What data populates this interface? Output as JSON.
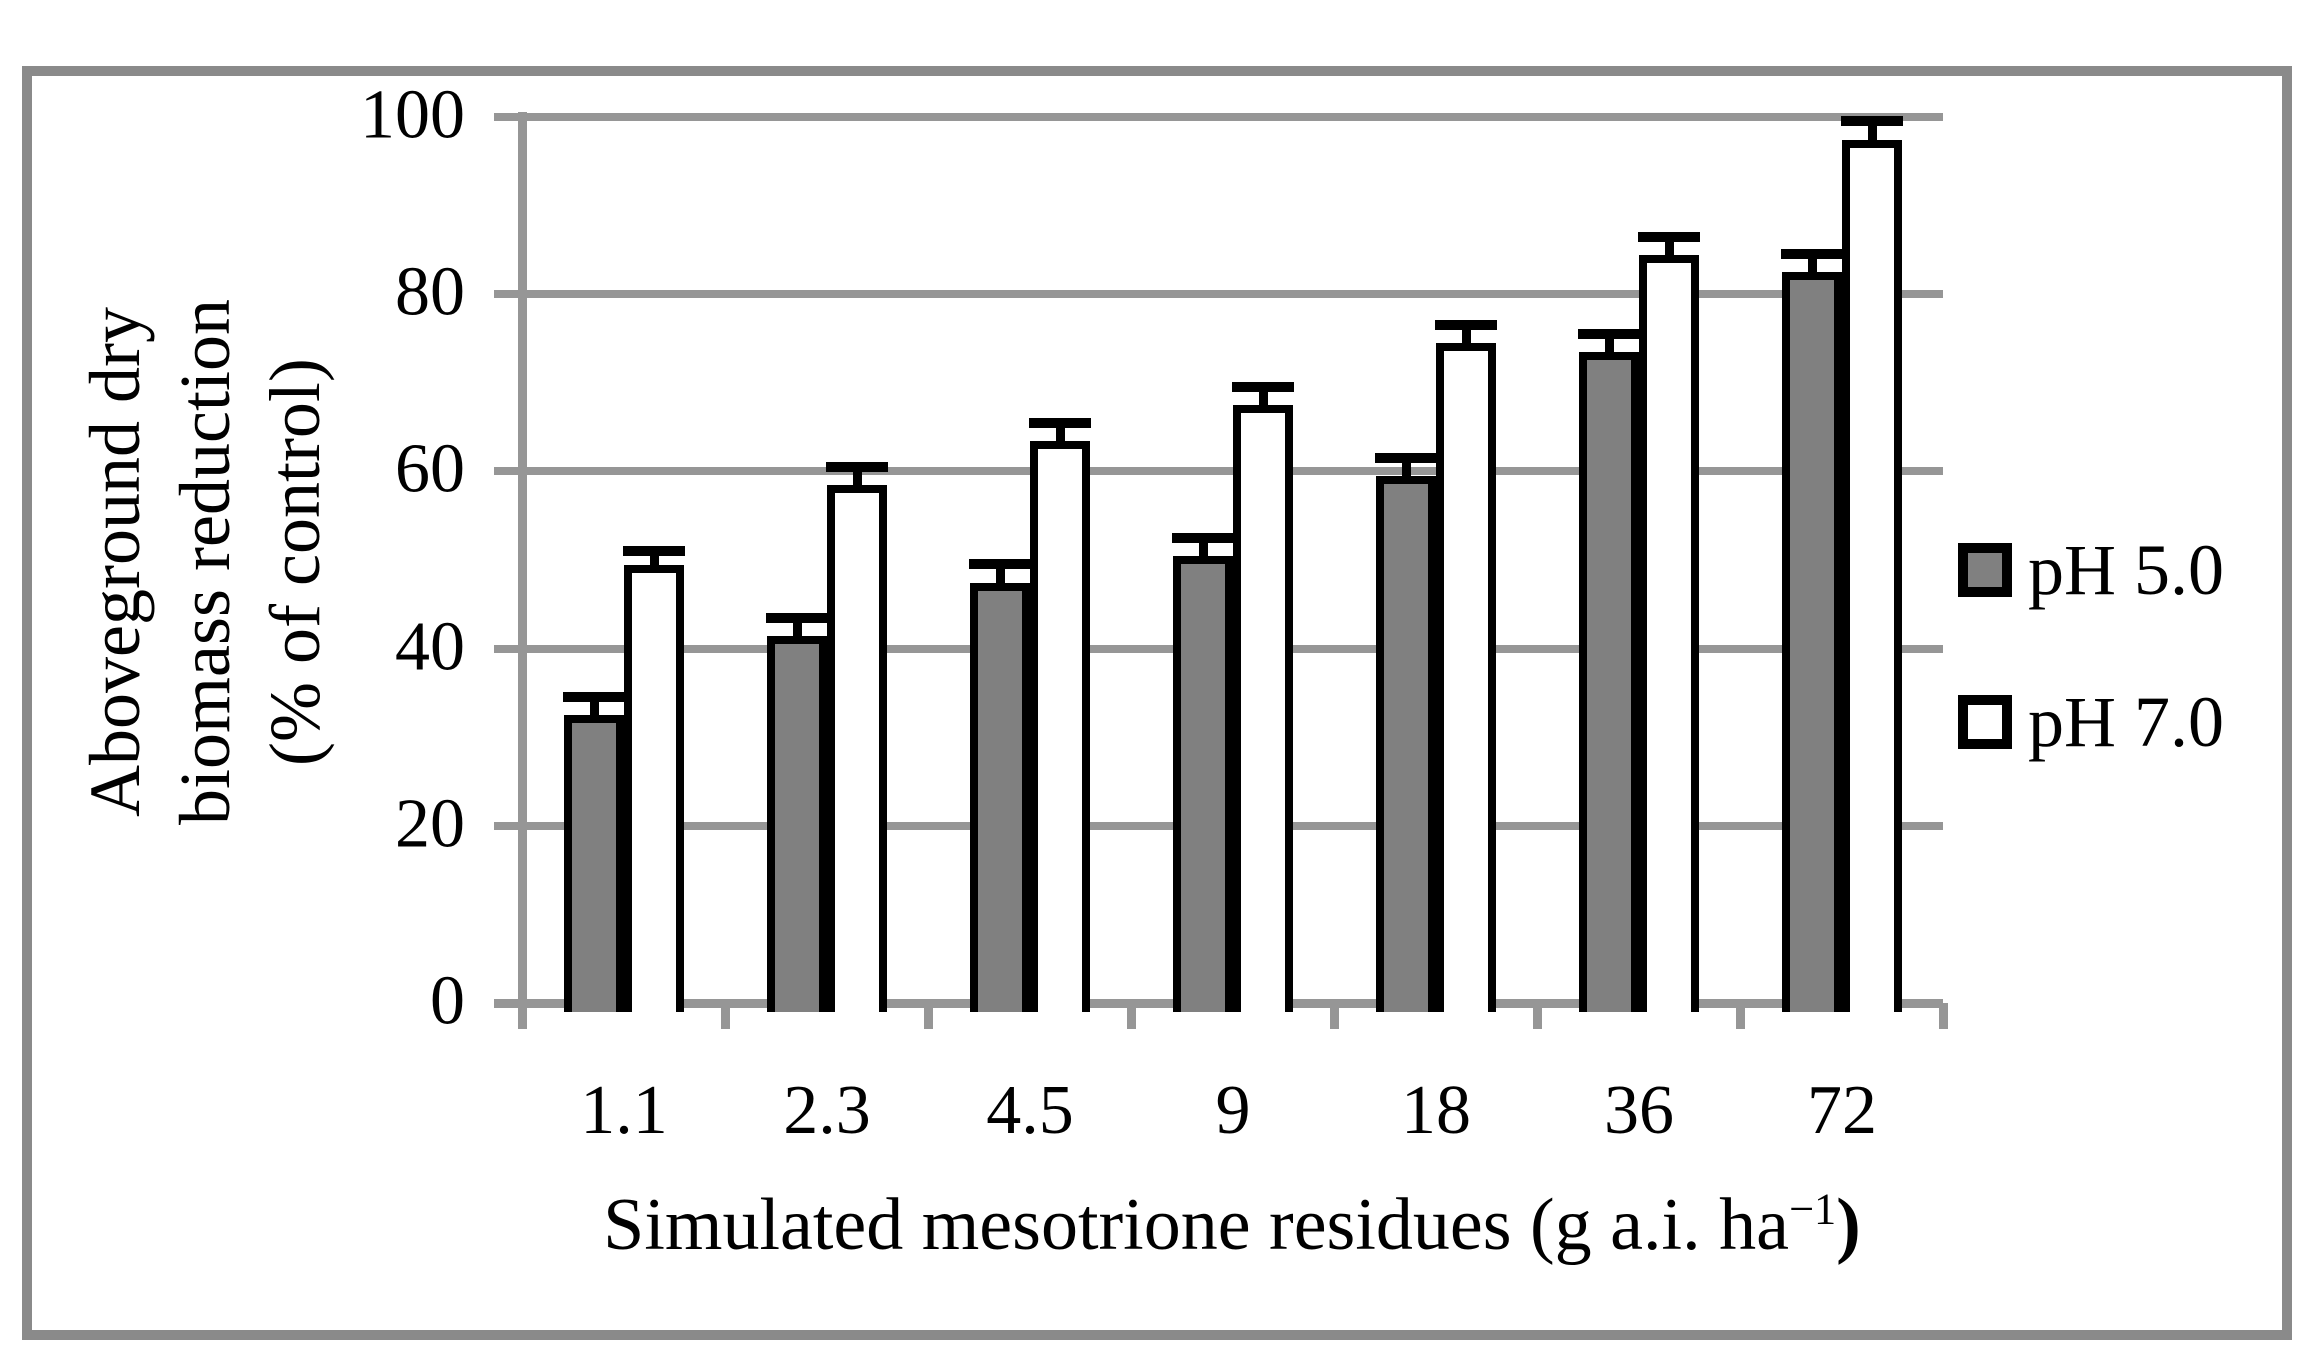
{
  "chart_data": {
    "type": "bar",
    "title": "",
    "categories": [
      "1.1",
      "2.3",
      "4.5",
      "9",
      "18",
      "36",
      "72"
    ],
    "series": [
      {
        "name": "pH 5.0",
        "color": "#808080",
        "values": [
          32,
          41,
          47,
          50,
          59,
          73,
          82
        ],
        "errors": [
          2.5,
          2.5,
          2.5,
          2.5,
          2.5,
          2.5,
          2.5
        ]
      },
      {
        "name": "pH 7.0",
        "color": "#ffffff",
        "values": [
          49,
          58,
          63,
          67,
          74,
          84,
          97
        ],
        "errors": [
          2,
          2.5,
          2.5,
          2.5,
          2.5,
          2.5,
          2.5
        ]
      }
    ],
    "error_bars": "upper-only",
    "xlabel": "Simulated mesotrione residues (g a.i. ha−1)",
    "xlabel_main": "Simulated mesotrione residues (g a.i. ha",
    "xlabel_sup": "−1",
    "xlabel_close": ")",
    "ylabel": "Aboveground dry biomass reduction (% of control)",
    "ylabel_lines": [
      "Aboveground dry",
      "biomass reduction",
      "(% of control)"
    ],
    "ylim": [
      0,
      100
    ],
    "ytick_step": 20,
    "yticks": [
      "0",
      "20",
      "40",
      "60",
      "80",
      "100"
    ],
    "grid": "horizontal",
    "legend_position": "right-middle",
    "colors": {
      "grid": "#969696",
      "frame": "#8a8a8a",
      "bar_border": "#000000",
      "error_bar": "#000000"
    }
  }
}
